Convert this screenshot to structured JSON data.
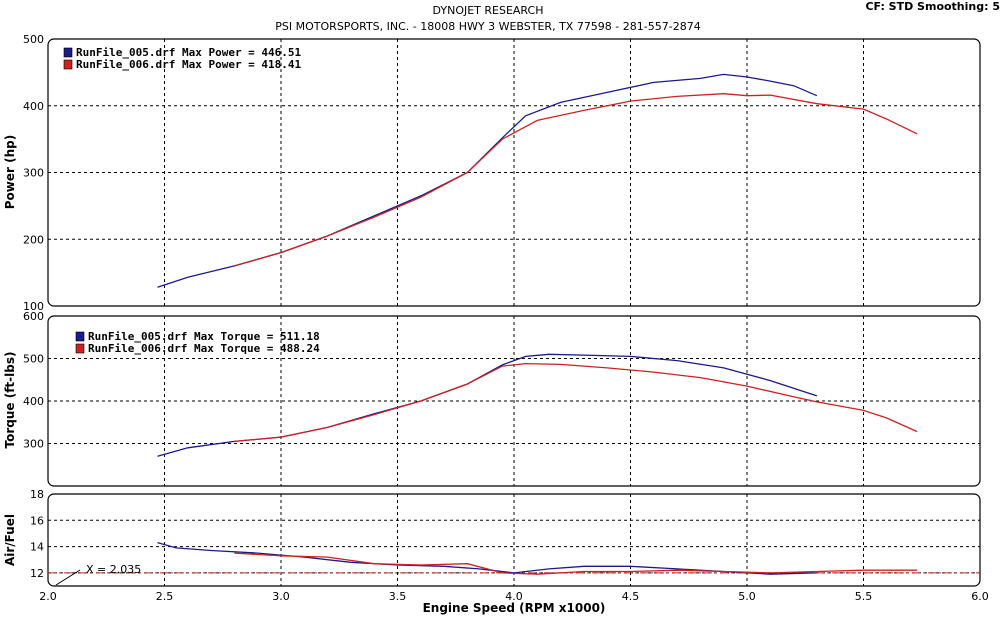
{
  "header": {
    "title": "DYNOJET RESEARCH",
    "subtitle": "PSI MOTORSPORTS, INC. - 18008 HWY 3  WEBSTER, TX 77598 - 281-557-2874",
    "settings": "CF: STD  Smoothing: 5"
  },
  "colors": {
    "run005": "#1a1a8c",
    "run006": "#cc2222",
    "reference_line": "#cc2222"
  },
  "chart_data": [
    {
      "type": "line",
      "ylabel": "Power (hp)",
      "ylim": [
        100,
        500
      ],
      "yticks": [
        100,
        200,
        300,
        400,
        500
      ],
      "xlim": [
        2.0,
        6.0
      ],
      "grid": true,
      "legend": [
        "RunFile_005.drf Max Power = 446.51",
        "RunFile_006.drf Max Power = 418.41"
      ],
      "series": [
        {
          "name": "RunFile_005.drf",
          "color": "#1a1a8c",
          "x": [
            2.47,
            2.6,
            2.8,
            3.0,
            3.2,
            3.4,
            3.6,
            3.8,
            3.95,
            4.05,
            4.2,
            4.4,
            4.6,
            4.8,
            4.9,
            5.0,
            5.1,
            5.2,
            5.3
          ],
          "y": [
            128,
            143,
            160,
            180,
            205,
            235,
            265,
            300,
            352,
            385,
            405,
            420,
            435,
            441,
            447,
            443,
            437,
            430,
            415
          ]
        },
        {
          "name": "RunFile_006.drf",
          "color": "#cc2222",
          "x": [
            2.8,
            3.0,
            3.2,
            3.4,
            3.6,
            3.8,
            3.95,
            4.1,
            4.3,
            4.5,
            4.7,
            4.9,
            5.0,
            5.1,
            5.3,
            5.5,
            5.6,
            5.73
          ],
          "y": [
            160,
            180,
            205,
            233,
            263,
            300,
            350,
            378,
            393,
            407,
            414,
            418,
            415,
            416,
            403,
            395,
            380,
            358
          ]
        }
      ]
    },
    {
      "type": "line",
      "ylabel": "Torque (ft-lbs)",
      "ylim": [
        200,
        600
      ],
      "yticks": [
        300,
        400,
        500,
        600
      ],
      "xlim": [
        2.0,
        6.0
      ],
      "grid": true,
      "legend": [
        "RunFile_005.drf Max Torque = 511.18",
        "RunFile_006.drf Max Torque = 488.24"
      ],
      "series": [
        {
          "name": "RunFile_005.drf",
          "color": "#1a1a8c",
          "x": [
            2.47,
            2.6,
            2.8,
            3.0,
            3.2,
            3.4,
            3.6,
            3.8,
            3.95,
            4.05,
            4.15,
            4.3,
            4.5,
            4.7,
            4.9,
            5.0,
            5.1,
            5.2,
            5.3
          ],
          "y": [
            270,
            290,
            305,
            315,
            338,
            370,
            400,
            440,
            485,
            505,
            510,
            508,
            505,
            495,
            478,
            463,
            448,
            430,
            412
          ]
        },
        {
          "name": "RunFile_006.drf",
          "color": "#cc2222",
          "x": [
            2.8,
            3.0,
            3.2,
            3.4,
            3.6,
            3.8,
            3.95,
            4.05,
            4.2,
            4.4,
            4.6,
            4.8,
            5.0,
            5.2,
            5.3,
            5.5,
            5.6,
            5.73
          ],
          "y": [
            305,
            315,
            338,
            368,
            400,
            440,
            482,
            488,
            486,
            478,
            468,
            455,
            435,
            410,
            398,
            378,
            360,
            328
          ]
        }
      ]
    },
    {
      "type": "line",
      "ylabel": "Air/Fuel",
      "ylim": [
        11,
        18
      ],
      "yticks": [
        12,
        14,
        16,
        18
      ],
      "xlim": [
        2.0,
        6.0
      ],
      "xticks": [
        2.0,
        2.5,
        3.0,
        3.5,
        4.0,
        4.5,
        5.0,
        5.5,
        6.0
      ],
      "xlabel": "Engine Speed (RPM x1000)",
      "grid": true,
      "reference_line": {
        "y": 12,
        "color": "#cc2222"
      },
      "annotation": "X = 2.035",
      "series": [
        {
          "name": "RunFile_005.drf",
          "color": "#1a1a8c",
          "x": [
            2.47,
            2.55,
            2.7,
            2.9,
            3.1,
            3.3,
            3.5,
            3.7,
            3.85,
            4.0,
            4.15,
            4.3,
            4.5,
            4.7,
            4.9,
            5.1,
            5.3
          ],
          "y": [
            14.3,
            13.9,
            13.7,
            13.5,
            13.2,
            12.8,
            12.6,
            12.5,
            12.3,
            12.0,
            12.3,
            12.5,
            12.5,
            12.3,
            12.1,
            11.9,
            12.0
          ]
        },
        {
          "name": "RunFile_006.drf",
          "color": "#cc2222",
          "x": [
            2.8,
            3.0,
            3.2,
            3.4,
            3.6,
            3.8,
            3.95,
            4.1,
            4.3,
            4.5,
            4.7,
            4.9,
            5.1,
            5.3,
            5.5,
            5.73
          ],
          "y": [
            13.5,
            13.3,
            13.2,
            12.7,
            12.6,
            12.7,
            12.0,
            11.9,
            12.1,
            12.1,
            12.2,
            12.1,
            12.0,
            12.1,
            12.2,
            12.2
          ]
        }
      ]
    }
  ]
}
